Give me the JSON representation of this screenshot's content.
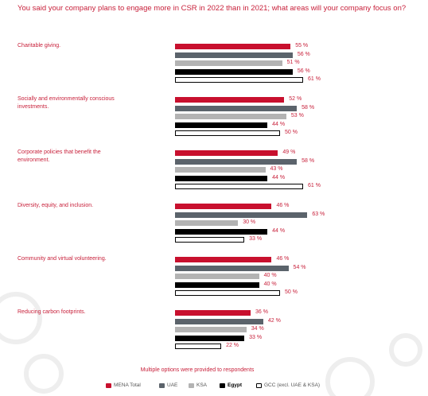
{
  "chart_data": {
    "type": "bar",
    "orientation": "horizontal",
    "title": "You said your company plans to engage more in CSR in 2022 than in 2021; what areas will your company focus on?",
    "note": "Multiple options were provided to respondents",
    "categories": [
      "Charitable giving.",
      "Socially and environmentally conscious investments.",
      "Corporate policies that benefit the environment.",
      "Diversity, equity, and inclusion.",
      "Community and virtual volunteering.",
      "Reducing carbon footprints."
    ],
    "series": [
      {
        "name": "MENA Total",
        "color": "#c8102e",
        "values": [
          55,
          52,
          49,
          46,
          46,
          36
        ],
        "value_labels": [
          "55 %",
          "52 %",
          "49 %",
          "46 %",
          "46 %",
          "36 %"
        ]
      },
      {
        "name": "UAE",
        "color": "#5b636b",
        "values": [
          56,
          58,
          58,
          63,
          54,
          42
        ],
        "value_labels": [
          "56 %",
          "58 %",
          "58 %",
          "63 %",
          "54 %",
          "42 %"
        ]
      },
      {
        "name": "KSA",
        "color": "#b3b3b3",
        "values": [
          51,
          53,
          43,
          30,
          40,
          34
        ],
        "value_labels": [
          "51 %",
          "53 %",
          "43 %",
          "30 %",
          "40 %",
          "34 %"
        ]
      },
      {
        "name": "Egypt",
        "color": "#000000",
        "values": [
          56,
          44,
          44,
          44,
          40,
          33
        ],
        "value_labels": [
          "56 %",
          "44 %",
          "44 %",
          "44 %",
          "40 %",
          "33 %"
        ]
      },
      {
        "name": "GCC (excl. UAE & KSA)",
        "color": "#ffffff",
        "values": [
          61,
          50,
          61,
          33,
          50,
          22
        ],
        "value_labels": [
          "61 %",
          "50 %",
          "61 %",
          "33 %",
          "50 %",
          "22 %"
        ]
      }
    ]
  }
}
